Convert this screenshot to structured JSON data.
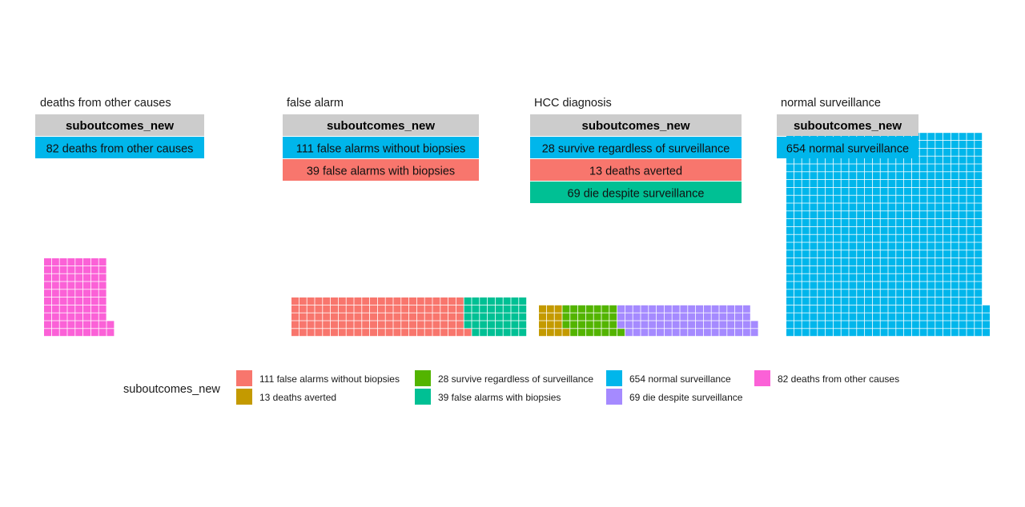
{
  "chart_data": {
    "type": "waffle",
    "legend_title": "suboutcomes_new",
    "legend_position": "bottom",
    "grid": false,
    "categories": [
      {
        "name": "111 false alarms without biopsies",
        "color": "#F8766D"
      },
      {
        "name": "13 deaths averted",
        "color": "#C49A00"
      },
      {
        "name": "28 survive regardless of surveillance",
        "color": "#53B400"
      },
      {
        "name": "39 false alarms with biopsies",
        "color": "#00C094"
      },
      {
        "name": "654 normal surveillance",
        "color": "#00B6EB"
      },
      {
        "name": "69 die despite surveillance",
        "color": "#A58AFF"
      },
      {
        "name": "82 deaths from other causes",
        "color": "#FB61D7"
      }
    ],
    "panels": [
      {
        "title": "deaths from other causes",
        "table_header": "suboutcomes_new",
        "table_rows": [
          {
            "label": "82 deaths from other causes",
            "color": "#00B6EB"
          }
        ],
        "segments": [
          {
            "category": "82 deaths from other causes",
            "count": 82
          }
        ]
      },
      {
        "title": "false alarm",
        "table_header": "suboutcomes_new",
        "table_rows": [
          {
            "label": "111 false alarms without biopsies",
            "color": "#00B6EB"
          },
          {
            "label": "39 false alarms with biopsies",
            "color": "#F8766D"
          }
        ],
        "segments": [
          {
            "category": "111 false alarms without biopsies",
            "count": 111
          },
          {
            "category": "39 false alarms with biopsies",
            "count": 39
          }
        ]
      },
      {
        "title": "HCC diagnosis",
        "table_header": "suboutcomes_new",
        "table_rows": [
          {
            "label": "28 survive regardless of surveillance",
            "color": "#00B6EB"
          },
          {
            "label": "13 deaths averted",
            "color": "#F8766D"
          },
          {
            "label": "69 die despite surveillance",
            "color": "#00C094"
          }
        ],
        "segments": [
          {
            "category": "13 deaths averted",
            "count": 13
          },
          {
            "category": "28 survive regardless of surveillance",
            "count": 28
          },
          {
            "category": "69 die despite surveillance",
            "count": 69
          }
        ]
      },
      {
        "title": "normal surveillance",
        "table_header": "suboutcomes_new",
        "table_rows": [
          {
            "label": "654 normal surveillance",
            "color": "#00B6EB"
          }
        ],
        "segments": [
          {
            "category": "654 normal surveillance",
            "count": 654
          }
        ]
      }
    ]
  }
}
